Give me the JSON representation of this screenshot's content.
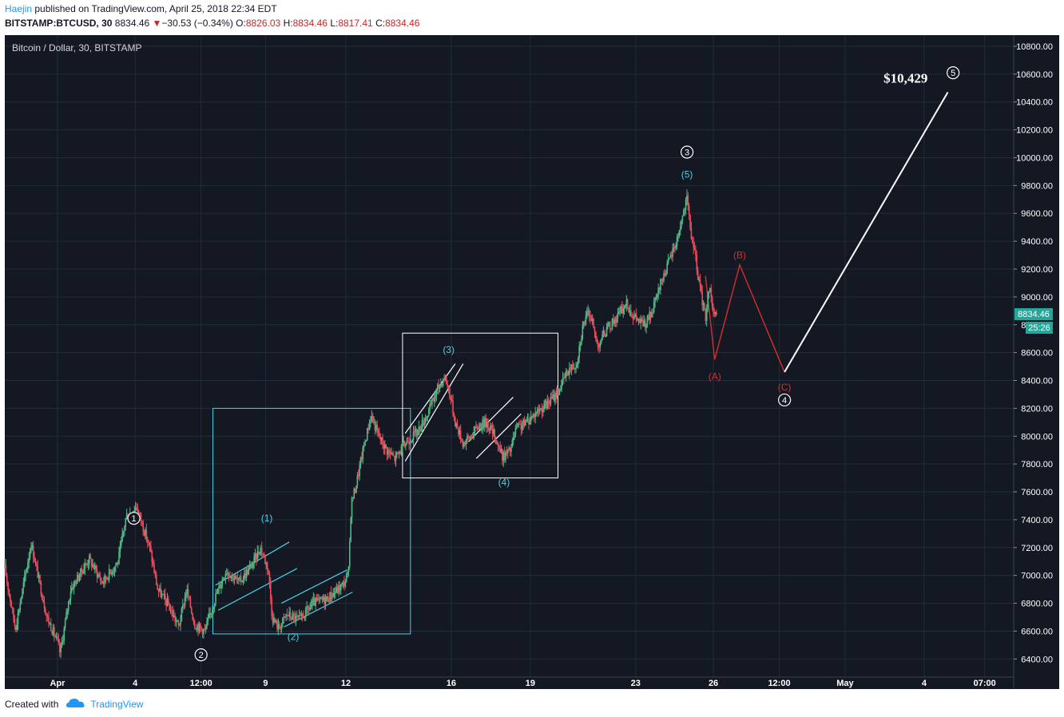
{
  "header": {
    "author": "Haejin",
    "published_text": "published on TradingView.com, April 25, 2018 22:34 EDT",
    "symbol": "BITSTAMP:BTCUSD, 30",
    "last": "8834.46",
    "change_arrow": "▼",
    "change": "−30.53 (−0.34%)",
    "o_label": "O:",
    "o_value": "8826.03",
    "h_label": "H:",
    "h_value": "8834.46",
    "l_label": "L:",
    "l_value": "8817.41",
    "c_label": "C:",
    "c_value": "8834.46"
  },
  "footer": {
    "created_with": "Created with",
    "brand": "TradingView"
  },
  "colors": {
    "background": "#141823",
    "grid": "#232a3b",
    "axis_text": "#ffffff",
    "up_candle": "#53b987",
    "down_candle": "#eb4d5c",
    "cyan": "#4dd0e1",
    "red_path": "#d32f2f",
    "white": "#ffffff",
    "price_tag": "#26a69a"
  },
  "chart_data": {
    "type": "candlestick",
    "title": "Bitcoin / Dollar, 30, BITSTAMP",
    "y_ticks": [
      "10800.00",
      "10600.00",
      "10400.00",
      "10200.00",
      "10000.00",
      "9800.00",
      "9600.00",
      "9400.00",
      "9200.00",
      "9000.00",
      "8800.00",
      "8600.00",
      "8400.00",
      "8200.00",
      "8000.00",
      "7800.00",
      "7600.00",
      "7400.00",
      "7200.00",
      "7000.00",
      "6800.00",
      "6600.00",
      "6400.00"
    ],
    "ylim": [
      6270,
      10880
    ],
    "x_ticks": [
      {
        "label": "Apr",
        "t": 0.4
      },
      {
        "label": "4",
        "t": 3.35
      },
      {
        "label": "12:00",
        "t": 5.85
      },
      {
        "label": "9",
        "t": 8.3
      },
      {
        "label": "12",
        "t": 11.35
      },
      {
        "label": "16",
        "t": 15.35
      },
      {
        "label": "19",
        "t": 18.35
      },
      {
        "label": "23",
        "t": 22.35
      },
      {
        "label": "26",
        "t": 25.3
      },
      {
        "label": "12:00",
        "t": 27.8
      },
      {
        "label": "May",
        "t": 30.3
      },
      {
        "label": "4",
        "t": 33.3
      },
      {
        "label": "07:00",
        "t": 35.6
      }
    ],
    "xlim": [
      -1.6,
      36.7
    ],
    "price_path": [
      [
        -1.6,
        7050
      ],
      [
        -1.2,
        6620
      ],
      [
        -0.6,
        7230
      ],
      [
        0.0,
        6700
      ],
      [
        0.4,
        6520
      ],
      [
        0.5,
        6440
      ],
      [
        0.9,
        6900
      ],
      [
        1.6,
        7120
      ],
      [
        2.1,
        6950
      ],
      [
        2.7,
        7100
      ],
      [
        3.0,
        7420
      ],
      [
        3.4,
        7500
      ],
      [
        3.6,
        7380
      ],
      [
        3.9,
        7200
      ],
      [
        4.2,
        6900
      ],
      [
        4.6,
        6790
      ],
      [
        5.0,
        6630
      ],
      [
        5.3,
        6900
      ],
      [
        5.6,
        6650
      ],
      [
        6.0,
        6600
      ],
      [
        6.4,
        6850
      ],
      [
        6.8,
        7040
      ],
      [
        7.3,
        6950
      ],
      [
        7.8,
        7080
      ],
      [
        8.1,
        7200
      ],
      [
        8.4,
        7050
      ],
      [
        8.55,
        6700
      ],
      [
        8.8,
        6620
      ],
      [
        9.1,
        6720
      ],
      [
        9.6,
        6680
      ],
      [
        10.1,
        6800
      ],
      [
        10.6,
        6830
      ],
      [
        11.0,
        6890
      ],
      [
        11.3,
        6950
      ],
      [
        11.45,
        7020
      ],
      [
        11.55,
        7520
      ],
      [
        11.7,
        7620
      ],
      [
        12.0,
        7900
      ],
      [
        12.3,
        8150
      ],
      [
        12.6,
        8000
      ],
      [
        12.9,
        7900
      ],
      [
        13.2,
        7840
      ],
      [
        13.7,
        7970
      ],
      [
        14.1,
        8040
      ],
      [
        14.5,
        8180
      ],
      [
        14.8,
        8330
      ],
      [
        15.1,
        8430
      ],
      [
        15.3,
        8300
      ],
      [
        15.5,
        8100
      ],
      [
        15.8,
        7950
      ],
      [
        16.1,
        8000
      ],
      [
        16.4,
        8080
      ],
      [
        16.7,
        8100
      ],
      [
        17.0,
        8000
      ],
      [
        17.3,
        7850
      ],
      [
        17.6,
        7900
      ],
      [
        17.8,
        8050
      ],
      [
        18.2,
        8100
      ],
      [
        18.6,
        8180
      ],
      [
        19.0,
        8230
      ],
      [
        19.4,
        8320
      ],
      [
        19.8,
        8480
      ],
      [
        20.1,
        8520
      ],
      [
        20.35,
        8800
      ],
      [
        20.6,
        8900
      ],
      [
        20.9,
        8650
      ],
      [
        21.2,
        8750
      ],
      [
        21.6,
        8850
      ],
      [
        22.0,
        8950
      ],
      [
        22.3,
        8850
      ],
      [
        22.7,
        8800
      ],
      [
        23.0,
        8900
      ],
      [
        23.3,
        9100
      ],
      [
        23.6,
        9250
      ],
      [
        23.9,
        9400
      ],
      [
        24.15,
        9600
      ],
      [
        24.3,
        9700
      ],
      [
        24.45,
        9450
      ],
      [
        24.6,
        9300
      ],
      [
        24.8,
        9050
      ],
      [
        25.0,
        8850
      ],
      [
        25.15,
        9100
      ],
      [
        25.3,
        8880
      ],
      [
        25.45,
        8830
      ]
    ],
    "waves": {
      "circled": [
        {
          "label": "1",
          "t": 3.3,
          "price": 7410
        },
        {
          "label": "2",
          "t": 5.85,
          "price": 6430
        },
        {
          "label": "3",
          "t": 24.3,
          "price": 10040
        },
        {
          "label": "4",
          "t": 28.0,
          "price": 8260
        },
        {
          "label": "5",
          "t": 34.4,
          "price": 10610
        }
      ],
      "cyan": [
        {
          "label": "(1)",
          "t": 8.35,
          "price": 7410
        },
        {
          "label": "(2)",
          "t": 9.35,
          "price": 6560
        },
        {
          "label": "(3)",
          "t": 15.25,
          "price": 8620
        },
        {
          "label": "(4)",
          "t": 17.35,
          "price": 7670
        },
        {
          "label": "(5)",
          "t": 24.3,
          "price": 9880
        }
      ],
      "red": [
        {
          "label": "(A)",
          "t": 25.35,
          "price": 8430
        },
        {
          "label": "(B)",
          "t": 26.3,
          "price": 9300
        },
        {
          "label": "(C)",
          "t": 28.0,
          "price": 8350
        }
      ]
    },
    "projection_label": "$10,429",
    "current_price": "8834.46",
    "countdown": "25:26"
  }
}
